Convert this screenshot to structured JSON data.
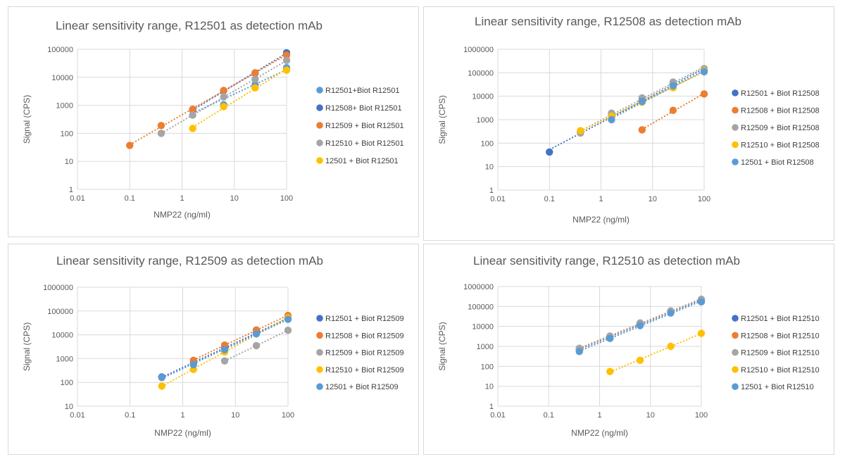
{
  "colors": {
    "blue_light": "#5b9bd5",
    "blue_dark": "#4472c4",
    "orange": "#ed7d31",
    "gray": "#a5a5a5",
    "yellow": "#ffc000"
  },
  "chart_data": [
    {
      "type": "scatter",
      "title": "Linear sensitivity range, R12501 as detection mAb",
      "xlabel": "NMP22 (ng/ml)",
      "ylabel": "Signal (CPS)",
      "xscale": "log",
      "yscale": "log",
      "xlim": [
        0.01,
        100
      ],
      "ylim": [
        1,
        100000
      ],
      "xticks": [
        "0.01",
        "0.1",
        "1",
        "10",
        "100"
      ],
      "yticks": [
        "1",
        "10",
        "100",
        "1000",
        "10000",
        "100000"
      ],
      "grid": true,
      "legend": "right",
      "series": [
        {
          "name": "R12501+Biot R12501",
          "color": "#5b9bd5",
          "trendline": true,
          "points": [
            [
              1.6,
              720
            ],
            [
              6.25,
              1050
            ],
            [
              25,
              5500
            ],
            [
              100,
              22000
            ]
          ]
        },
        {
          "name": "R12508+ Biot R12501",
          "color": "#4472c4",
          "trendline": true,
          "points": [
            [
              1.6,
              680
            ],
            [
              6.25,
              3300
            ],
            [
              25,
              14000
            ],
            [
              100,
              75000
            ]
          ]
        },
        {
          "name": "R12509 + Biot R12501",
          "color": "#ed7d31",
          "trendline": true,
          "points": [
            [
              0.1,
              37
            ],
            [
              0.4,
              190
            ],
            [
              1.6,
              720
            ],
            [
              6.25,
              3400
            ],
            [
              25,
              14500
            ],
            [
              100,
              62000
            ]
          ]
        },
        {
          "name": "R12510 + Biot R12501",
          "color": "#a5a5a5",
          "trendline": true,
          "points": [
            [
              0.4,
              100
            ],
            [
              1.6,
              450
            ],
            [
              6.25,
              2000
            ],
            [
              25,
              8500
            ],
            [
              100,
              40000
            ]
          ]
        },
        {
          "name": "12501 + Biot R12501",
          "color": "#ffc000",
          "trendline": true,
          "points": [
            [
              1.6,
              150
            ],
            [
              6.25,
              900
            ],
            [
              25,
              4200
            ],
            [
              100,
              18000
            ]
          ]
        }
      ]
    },
    {
      "type": "scatter",
      "title": "Linear sensitivity range, R12508 as detection mAb",
      "xlabel": "NMP22 (ng/ml)",
      "ylabel": "Signal (CPS)",
      "xscale": "log",
      "yscale": "log",
      "xlim": [
        0.01,
        100
      ],
      "ylim": [
        1,
        1000000
      ],
      "xticks": [
        "0.01",
        "0.1",
        "1",
        "10",
        "100"
      ],
      "yticks": [
        "1",
        "10",
        "100",
        "1000",
        "10000",
        "100000",
        "1000000"
      ],
      "grid": true,
      "legend": "right",
      "series": [
        {
          "name": "R12501 + Biot R12508",
          "color": "#4472c4",
          "trendline": true,
          "points": [
            [
              0.1,
              42
            ],
            [
              0.4,
              300
            ],
            [
              1.6,
              1500
            ],
            [
              6.25,
              6500
            ],
            [
              25,
              32000
            ],
            [
              100,
              130000
            ]
          ]
        },
        {
          "name": "R12508 + Biot R12508",
          "color": "#ed7d31",
          "trendline": true,
          "points": [
            [
              6.25,
              370
            ],
            [
              25,
              2500
            ],
            [
              100,
              12500
            ]
          ]
        },
        {
          "name": "R12509 + Biot R12508",
          "color": "#a5a5a5",
          "trendline": true,
          "points": [
            [
              0.4,
              270
            ],
            [
              1.6,
              1900
            ],
            [
              6.25,
              8500
            ],
            [
              25,
              40000
            ],
            [
              100,
              150000
            ]
          ]
        },
        {
          "name": "R12510 + Biot R12508",
          "color": "#ffc000",
          "trendline": true,
          "points": [
            [
              0.4,
              340
            ],
            [
              1.6,
              1400
            ],
            [
              6.25,
              5500
            ],
            [
              25,
              23000
            ],
            [
              100,
              120000
            ]
          ]
        },
        {
          "name": "12501 + Biot R12508",
          "color": "#5b9bd5",
          "trendline": true,
          "points": [
            [
              1.6,
              1000
            ],
            [
              6.25,
              6000
            ],
            [
              25,
              28000
            ],
            [
              100,
              110000
            ]
          ]
        }
      ]
    },
    {
      "type": "scatter",
      "title": "Linear sensitivity range, R12509 as detection mAb",
      "xlabel": "NMP22 (ng/ml)",
      "ylabel": "Signal (CPS)",
      "xscale": "log",
      "yscale": "log",
      "xlim": [
        0.01,
        100
      ],
      "ylim": [
        10,
        1000000
      ],
      "xticks": [
        "0.01",
        "0.1",
        "1",
        "10",
        "100"
      ],
      "yticks": [
        "10",
        "100",
        "1000",
        "10000",
        "100000",
        "1000000"
      ],
      "grid": true,
      "legend": "right",
      "series": [
        {
          "name": "R12501 + Biot R12509",
          "color": "#4472c4",
          "trendline": true,
          "points": [
            [
              0.4,
              170
            ],
            [
              1.6,
              650
            ],
            [
              6.25,
              2800
            ],
            [
              25,
              12000
            ],
            [
              100,
              50000
            ]
          ]
        },
        {
          "name": "R12508 + Biot R12509",
          "color": "#ed7d31",
          "trendline": true,
          "points": [
            [
              1.6,
              850
            ],
            [
              6.25,
              3700
            ],
            [
              25,
              16000
            ],
            [
              100,
              65000
            ]
          ]
        },
        {
          "name": "R12509 + Biot R12509",
          "color": "#a5a5a5",
          "trendline": true,
          "points": [
            [
              6.25,
              800
            ],
            [
              25,
              3500
            ],
            [
              100,
              15500
            ]
          ]
        },
        {
          "name": "R12510 + Biot R12509",
          "color": "#ffc000",
          "trendline": true,
          "points": [
            [
              0.4,
              70
            ],
            [
              1.6,
              350
            ],
            [
              6.25,
              1900
            ],
            [
              25,
              11000
            ],
            [
              100,
              52000
            ]
          ]
        },
        {
          "name": "12501 + Biot R12509",
          "color": "#5b9bd5",
          "trendline": true,
          "points": [
            [
              0.4,
              160
            ],
            [
              1.6,
              560
            ],
            [
              6.25,
              2400
            ],
            [
              25,
              11000
            ],
            [
              100,
              45000
            ]
          ]
        }
      ]
    },
    {
      "type": "scatter",
      "title": "Linear sensitivity range, R12510 as detection mAb",
      "xlabel": "NMP22 (ng/ml)",
      "ylabel": "Signal (CPS)",
      "xscale": "log",
      "yscale": "log",
      "xlim": [
        0.01,
        100
      ],
      "ylim": [
        1,
        1000000
      ],
      "xticks": [
        "0.01",
        "0.1",
        "1",
        "10",
        "100"
      ],
      "yticks": [
        "1",
        "10",
        "100",
        "1000",
        "10000",
        "100000",
        "1000000"
      ],
      "grid": true,
      "legend": "right",
      "series": [
        {
          "name": "R12501 + Biot R12510",
          "color": "#4472c4",
          "trendline": true,
          "points": [
            [
              0.4,
              700
            ],
            [
              1.6,
              3000
            ],
            [
              6.25,
              13000
            ],
            [
              25,
              55000
            ],
            [
              100,
              200000
            ]
          ]
        },
        {
          "name": "R12508 + Biot R12510",
          "color": "#ed7d31",
          "trendline": true,
          "points": [
            [
              0.4,
              750
            ],
            [
              1.6,
              3100
            ],
            [
              6.25,
              14000
            ],
            [
              25,
              58000
            ],
            [
              100,
              220000
            ]
          ]
        },
        {
          "name": "R12509 + Biot R12510",
          "color": "#a5a5a5",
          "trendline": true,
          "points": [
            [
              0.4,
              800
            ],
            [
              1.6,
              3300
            ],
            [
              6.25,
              15000
            ],
            [
              25,
              60000
            ],
            [
              100,
              230000
            ]
          ]
        },
        {
          "name": "R12510 + Biot R12510",
          "color": "#ffc000",
          "trendline": true,
          "points": [
            [
              1.6,
              55
            ],
            [
              6.25,
              200
            ],
            [
              25,
              1000
            ],
            [
              100,
              4500
            ]
          ]
        },
        {
          "name": "12501 + Biot R12510",
          "color": "#5b9bd5",
          "trendline": true,
          "points": [
            [
              0.4,
              550
            ],
            [
              1.6,
              2500
            ],
            [
              6.25,
              11000
            ],
            [
              25,
              47000
            ],
            [
              100,
              170000
            ]
          ]
        }
      ]
    }
  ]
}
